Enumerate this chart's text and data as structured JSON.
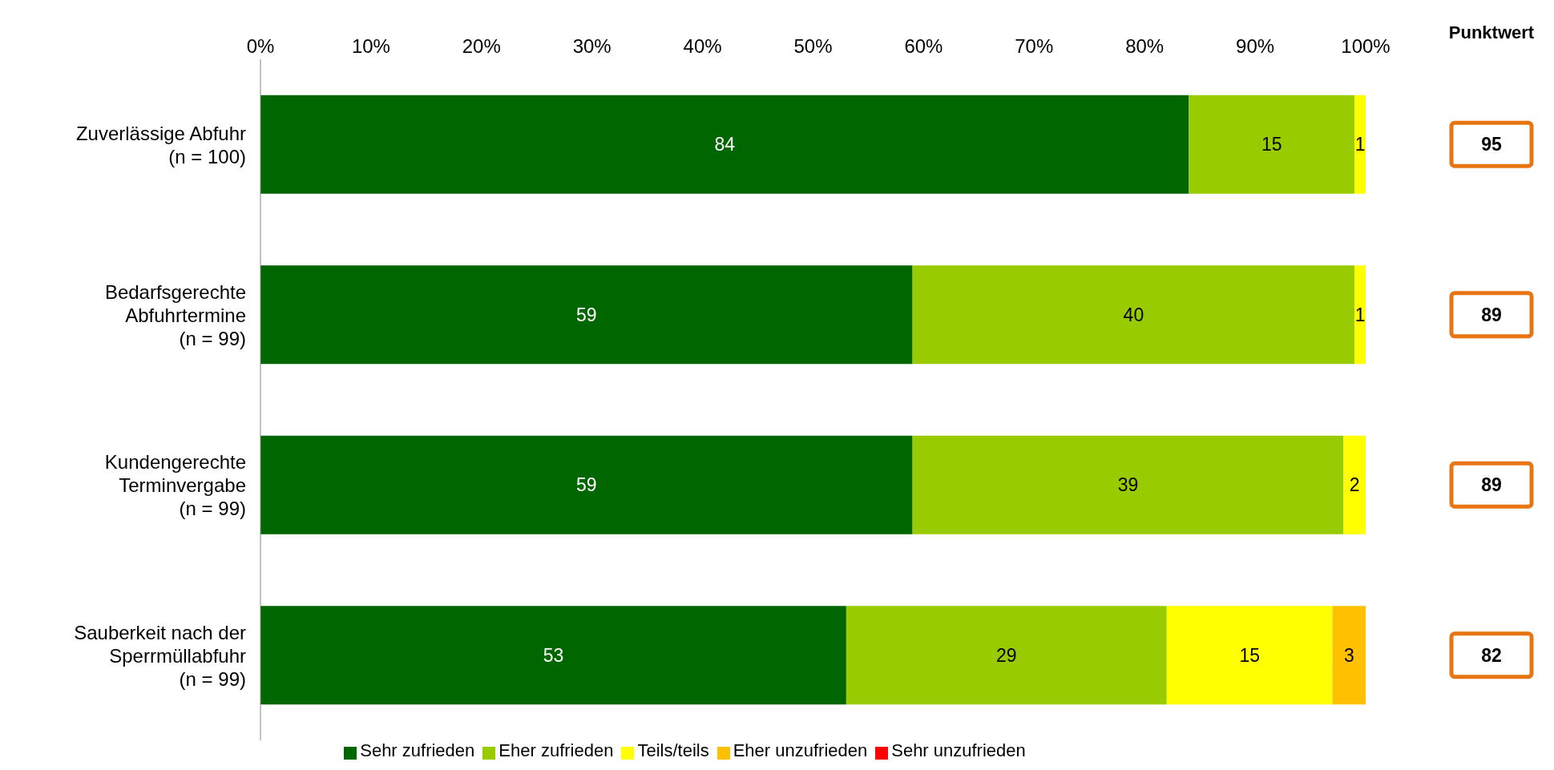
{
  "chart_data": {
    "type": "bar",
    "orientation": "horizontal",
    "stacked": true,
    "categories": [
      "Zuverlässige Abfuhr\n(n = 100)",
      "Bedarfsgerechte\nAbfuhrtermine\n(n = 99)",
      "Kundengerechte\nTerminvergabe\n(n = 99)",
      "Sauberkeit nach der\nSperrmüllabfuhr\n(n = 99)"
    ],
    "series": [
      {
        "name": "Sehr zufrieden",
        "color": "#006600",
        "values": [
          84,
          59,
          59,
          53
        ]
      },
      {
        "name": "Eher zufrieden",
        "color": "#99cc00",
        "values": [
          15,
          40,
          39,
          29
        ]
      },
      {
        "name": "Teils/teils",
        "color": "#ffff00",
        "values": [
          1,
          1,
          2,
          15
        ]
      },
      {
        "name": "Eher unzufrieden",
        "color": "#ffc000",
        "values": [
          null,
          null,
          null,
          3
        ]
      },
      {
        "name": "Sehr unzufrieden",
        "color": "#ff0000",
        "values": [
          null,
          null,
          null,
          null
        ]
      }
    ],
    "xlim": [
      0,
      100
    ],
    "xticks": [
      {
        "value": 0,
        "label": "0%"
      },
      {
        "value": 10,
        "label": "10%"
      },
      {
        "value": 20,
        "label": "20%"
      },
      {
        "value": 30,
        "label": "30%"
      },
      {
        "value": 40,
        "label": "40%"
      },
      {
        "value": 50,
        "label": "50%"
      },
      {
        "value": 60,
        "label": "60%"
      },
      {
        "value": 70,
        "label": "70%"
      },
      {
        "value": 80,
        "label": "80%"
      },
      {
        "value": 90,
        "label": "90%"
      },
      {
        "value": 100,
        "label": "100%"
      }
    ],
    "data_labels": true,
    "grid": false,
    "legend": "bottom",
    "annotations": [
      "Punktwert",
      "95",
      "89",
      "89",
      "82"
    ]
  }
}
